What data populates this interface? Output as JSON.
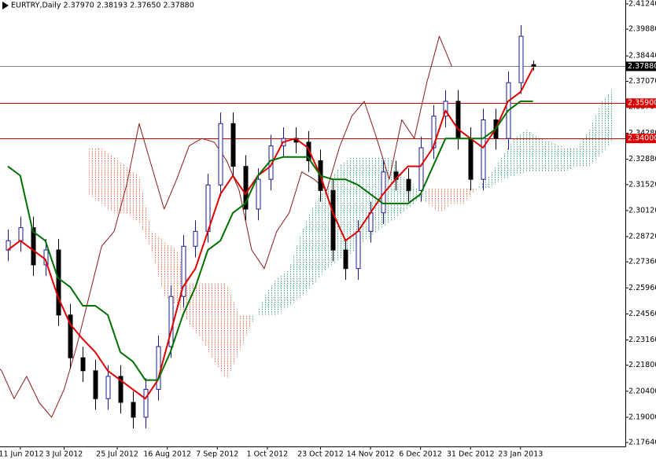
{
  "chart_data": {
    "type": "candlestick",
    "title": "EURTRY,Daily  2.37970 2.38193 2.37650 2.37880",
    "x": [
      2,
      6,
      10,
      14,
      18,
      22,
      26,
      30,
      34,
      38,
      42,
      46,
      50,
      54,
      58,
      62,
      66,
      70,
      74,
      78,
      82,
      86,
      90,
      94,
      98,
      102,
      106,
      110,
      114,
      118,
      122,
      126,
      130,
      134,
      138,
      142,
      146,
      150,
      154,
      158,
      162,
      166,
      170
    ],
    "open": [
      2.28,
      2.285,
      2.292,
      2.272,
      2.28,
      2.245,
      2.222,
      2.215,
      2.2,
      2.212,
      2.198,
      2.19,
      2.205,
      2.228,
      2.255,
      2.282,
      2.29,
      2.315,
      2.348,
      2.325,
      2.302,
      2.318,
      2.336,
      2.34,
      2.338,
      2.328,
      2.312,
      2.28,
      2.27,
      2.29,
      2.3,
      2.322,
      2.318,
      2.312,
      2.335,
      2.352,
      2.36,
      2.34,
      2.318,
      2.35,
      2.34,
      2.37,
      2.3797
    ],
    "high": [
      2.291,
      2.298,
      2.298,
      2.286,
      2.286,
      2.251,
      2.228,
      2.221,
      2.218,
      2.218,
      2.204,
      2.211,
      2.234,
      2.261,
      2.288,
      2.296,
      2.321,
      2.354,
      2.354,
      2.331,
      2.324,
      2.342,
      2.346,
      2.346,
      2.344,
      2.334,
      2.318,
      2.286,
      2.296,
      2.306,
      2.328,
      2.328,
      2.324,
      2.341,
      2.358,
      2.366,
      2.366,
      2.346,
      2.356,
      2.356,
      2.376,
      2.401,
      2.38193
    ],
    "low": [
      2.274,
      2.279,
      2.266,
      2.266,
      2.239,
      2.216,
      2.209,
      2.194,
      2.194,
      2.192,
      2.184,
      2.184,
      2.199,
      2.222,
      2.249,
      2.276,
      2.284,
      2.309,
      2.319,
      2.296,
      2.296,
      2.312,
      2.33,
      2.332,
      2.322,
      2.306,
      2.274,
      2.264,
      2.264,
      2.284,
      2.294,
      2.312,
      2.306,
      2.306,
      2.329,
      2.346,
      2.334,
      2.312,
      2.312,
      2.334,
      2.334,
      2.364,
      2.3765
    ],
    "close": [
      2.285,
      2.292,
      2.272,
      2.28,
      2.245,
      2.222,
      2.215,
      2.2,
      2.212,
      2.198,
      2.19,
      2.205,
      2.228,
      2.255,
      2.282,
      2.29,
      2.315,
      2.348,
      2.325,
      2.302,
      2.318,
      2.336,
      2.34,
      2.338,
      2.328,
      2.312,
      2.28,
      2.27,
      2.29,
      2.3,
      2.322,
      2.318,
      2.312,
      2.335,
      2.352,
      2.36,
      2.34,
      2.318,
      2.35,
      2.34,
      2.37,
      2.395,
      2.3788
    ],
    "bull_color": "#1a1a8c",
    "bear_color": "#000000",
    "series": [
      {
        "color": "#dd0000",
        "width": 2,
        "values": [
          2.28,
          2.285,
          2.28,
          2.275,
          2.255,
          2.24,
          2.232,
          2.225,
          2.215,
          2.21,
          2.205,
          2.2,
          2.21,
          2.235,
          2.26,
          2.27,
          2.29,
          2.31,
          2.32,
          2.31,
          2.32,
          2.325,
          2.338,
          2.34,
          2.335,
          2.32,
          2.3,
          2.285,
          2.29,
          2.3,
          2.31,
          2.318,
          2.325,
          2.325,
          2.335,
          2.355,
          2.345,
          2.34,
          2.335,
          2.345,
          2.36,
          2.365,
          2.378
        ]
      },
      {
        "color": "#007000",
        "width": 2,
        "values": [
          2.325,
          2.32,
          2.29,
          2.285,
          2.265,
          2.26,
          2.25,
          2.25,
          2.245,
          2.225,
          2.22,
          2.21,
          2.21,
          2.225,
          2.245,
          2.26,
          2.28,
          2.285,
          2.3,
          2.305,
          2.32,
          2.328,
          2.33,
          2.33,
          2.33,
          2.32,
          2.318,
          2.318,
          2.315,
          2.31,
          2.305,
          2.305,
          2.305,
          2.31,
          2.325,
          2.34,
          2.34,
          2.34,
          2.34,
          2.345,
          2.355,
          2.36,
          2.36
        ]
      }
    ],
    "chikou": {
      "color": "#8b1a1a",
      "width": 1,
      "shift": -26
    },
    "cloud": {
      "shift": 26,
      "up_color": "#3aa88a",
      "down_color": "#ff6a3d",
      "span_a": [
        2.31,
        2.305,
        2.3,
        2.3,
        2.295,
        2.28,
        2.255,
        2.25,
        2.24,
        2.232,
        2.22,
        2.21,
        2.225,
        2.24,
        2.255,
        2.265,
        2.27,
        2.29,
        2.305,
        2.315,
        2.325,
        2.33,
        2.33,
        2.33,
        2.33,
        2.32,
        2.315,
        2.305,
        2.3,
        2.305,
        2.305,
        2.313,
        2.32,
        2.33,
        2.34,
        2.345,
        2.34,
        2.338,
        2.335,
        2.335,
        2.345,
        2.36,
        2.368
      ],
      "span_b": [
        2.335,
        2.335,
        2.33,
        2.325,
        2.32,
        2.29,
        2.285,
        2.28,
        2.262,
        2.262,
        2.262,
        2.262,
        2.245,
        2.245,
        2.245,
        2.245,
        2.25,
        2.255,
        2.262,
        2.27,
        2.275,
        2.278,
        2.285,
        2.29,
        2.295,
        2.3,
        2.305,
        2.313,
        2.313,
        2.313,
        2.313,
        2.313,
        2.313,
        2.318,
        2.32,
        2.322,
        2.322,
        2.322,
        2.322,
        2.325,
        2.325,
        2.332,
        2.34
      ]
    },
    "hlines": [
      {
        "value": 2.3788,
        "label": "2.37880",
        "color": "#808080",
        "box": "#000000"
      },
      {
        "value": 2.359,
        "label": "2.35900",
        "color": "#cc0000",
        "box": "#dd0000"
      },
      {
        "value": 2.34,
        "label": "2.34000",
        "color": "#cc0000",
        "box": "#dd0000"
      }
    ],
    "xlim": [
      -0.5,
      199.5
    ],
    "ylim": [
      2.1743,
      2.4145
    ],
    "xticks": [
      {
        "value": 6,
        "label": "11 Jun 2012"
      },
      {
        "value": 20,
        "label": "3 Jul 2012"
      },
      {
        "value": 37,
        "label": "25 Jul 2012"
      },
      {
        "value": 53,
        "label": "16 Aug 2012"
      },
      {
        "value": 69,
        "label": "7 Sep 2012"
      },
      {
        "value": 85,
        "label": "1 Oct 2012"
      },
      {
        "value": 102,
        "label": "23 Oct 2012"
      },
      {
        "value": 118,
        "label": "14 Nov 2012"
      },
      {
        "value": 134,
        "label": "6 Dec 2012"
      },
      {
        "value": 150,
        "label": "31 Dec 2012"
      },
      {
        "value": 166,
        "label": "23 Jan 2013"
      }
    ],
    "yticks": [
      {
        "value": 2.4124,
        "label": "2.41240"
      },
      {
        "value": 2.3988,
        "label": "2.39880"
      },
      {
        "value": 2.3844,
        "label": "2.38440"
      },
      {
        "value": 2.3707,
        "label": "2.37070"
      },
      {
        "value": 2.357,
        "label": "2.35700"
      },
      {
        "value": 2.3428,
        "label": "2.34280"
      },
      {
        "value": 2.3288,
        "label": "2.32880"
      },
      {
        "value": 2.3152,
        "label": "2.31520"
      },
      {
        "value": 2.3012,
        "label": "2.30120"
      },
      {
        "value": 2.2872,
        "label": "2.28720"
      },
      {
        "value": 2.2736,
        "label": "2.27360"
      },
      {
        "value": 2.2596,
        "label": "2.25960"
      },
      {
        "value": 2.2456,
        "label": "2.24560"
      },
      {
        "value": 2.2316,
        "label": "2.23160"
      },
      {
        "value": 2.218,
        "label": "2.21800"
      },
      {
        "value": 2.204,
        "label": "2.20400"
      },
      {
        "value": 2.19,
        "label": "2.19000"
      },
      {
        "value": 2.1764,
        "label": "2.17640"
      }
    ]
  }
}
